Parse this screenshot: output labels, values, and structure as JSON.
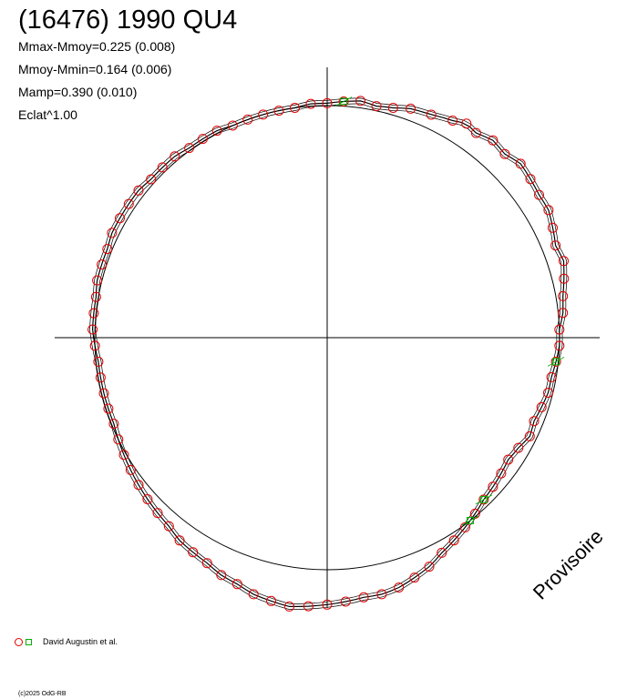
{
  "header": {
    "title": "(16476) 1990 QU4",
    "stats": [
      "Mmax-Mmoy=0.225 (0.008)",
      "Mmoy-Mmin=0.164 (0.006)",
      "Mamp=0.390 (0.010)",
      "Eclat^1.00"
    ]
  },
  "legend": {
    "observer": "David Augustin et al."
  },
  "watermark": "Provisoire",
  "copyright": "(c)2025 OdG-RB",
  "colors": {
    "observations": "#e00000",
    "second_set": "#00b000",
    "curve": "#000000",
    "reference_circle": "#000000"
  },
  "chart_data": {
    "type": "scatter",
    "projection": "polar light-curve (phase as angle, brightness as radius)",
    "reference_circle_radius": 1.0,
    "series": [
      {
        "name": "David Augustin et al.",
        "marker": "circle",
        "color": "#e00000",
        "points": [
          [
            0.0,
            1.01
          ],
          [
            4,
            1.02
          ],
          [
            8,
            1.03
          ],
          [
            12,
            1.02
          ],
          [
            16,
            1.03
          ],
          [
            20,
            1.05
          ],
          [
            25,
            1.06
          ],
          [
            30,
            1.08
          ],
          [
            33,
            1.1
          ],
          [
            36,
            1.09
          ],
          [
            40,
            1.11
          ],
          [
            44,
            1.1
          ],
          [
            48,
            1.12
          ],
          [
            52,
            1.11
          ],
          [
            56,
            1.1
          ],
          [
            60,
            1.1
          ],
          [
            64,
            1.08
          ],
          [
            68,
            1.06
          ],
          [
            72,
            1.07
          ],
          [
            76,
            1.05
          ],
          [
            80,
            1.03
          ],
          [
            84,
            1.02
          ],
          [
            88,
            1.0
          ],
          [
            92,
            1.0
          ],
          [
            96,
            0.99
          ],
          [
            100,
            0.98
          ],
          [
            104,
            0.98
          ],
          [
            108,
            0.97
          ],
          [
            112,
            0.96
          ],
          [
            116,
            0.97
          ],
          [
            120,
            0.95
          ],
          [
            124,
            0.94
          ],
          [
            128,
            0.95
          ],
          [
            132,
            0.96
          ],
          [
            136,
            0.97
          ],
          [
            140,
            0.99
          ],
          [
            144,
            1.01
          ],
          [
            148,
            1.03
          ],
          [
            152,
            1.05
          ],
          [
            156,
            1.08
          ],
          [
            160,
            1.1
          ],
          [
            164,
            1.12
          ],
          [
            168,
            1.13
          ],
          [
            172,
            1.13
          ],
          [
            176,
            1.14
          ],
          [
            180,
            1.15
          ],
          [
            184,
            1.16
          ],
          [
            188,
            1.17
          ],
          [
            192,
            1.16
          ],
          [
            196,
            1.15
          ],
          [
            200,
            1.13
          ],
          [
            204,
            1.12
          ],
          [
            208,
            1.1
          ],
          [
            212,
            1.09
          ],
          [
            216,
            1.08
          ],
          [
            220,
            1.06
          ],
          [
            224,
            1.05
          ],
          [
            228,
            1.04
          ],
          [
            232,
            1.03
          ],
          [
            236,
            1.02
          ],
          [
            240,
            1.01
          ],
          [
            244,
            1.0
          ],
          [
            248,
            0.99
          ],
          [
            252,
            0.99
          ],
          [
            256,
            0.99
          ],
          [
            260,
            0.99
          ],
          [
            264,
            0.99
          ],
          [
            268,
            1.0
          ],
          [
            272,
            1.01
          ],
          [
            276,
            1.01
          ],
          [
            280,
            1.01
          ],
          [
            284,
            1.02
          ],
          [
            288,
            1.02
          ],
          [
            292,
            1.02
          ],
          [
            296,
            1.03
          ],
          [
            300,
            1.03
          ],
          [
            304,
            1.03
          ],
          [
            308,
            1.03
          ],
          [
            312,
            1.02
          ],
          [
            316,
            1.02
          ],
          [
            320,
            1.02
          ],
          [
            324,
            1.01
          ],
          [
            328,
            1.01
          ],
          [
            332,
            1.01
          ],
          [
            336,
            1.0
          ],
          [
            340,
            1.0
          ],
          [
            344,
            1.0
          ],
          [
            348,
            1.0
          ],
          [
            352,
            1.0
          ],
          [
            356,
            1.01
          ]
        ]
      },
      {
        "name": "",
        "marker": "square",
        "color": "#00b000",
        "points": [
          [
            4,
            1.02
          ],
          [
            96,
            0.99
          ],
          [
            136,
            0.97
          ],
          [
            142,
            1.0
          ]
        ]
      }
    ],
    "axes": {
      "horizontal": true,
      "vertical": true
    }
  }
}
